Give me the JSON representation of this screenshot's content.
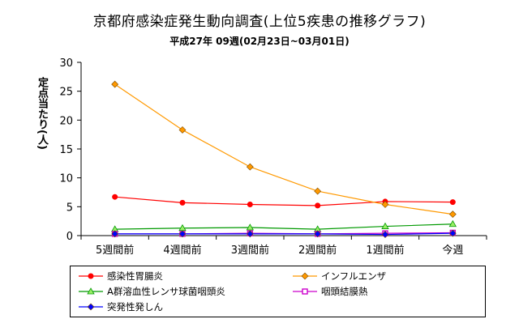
{
  "chart_data": {
    "type": "line",
    "title": "京都府感染症発生動向調査(上位5疾患の推移グラフ)",
    "subtitle": "平成27年 09週(02月23日~03月01日)",
    "ylabel": "定点当たり(人)",
    "categories": [
      "5週間前",
      "4週間前",
      "3週間前",
      "2週間前",
      "1週間前",
      "今週"
    ],
    "ylim": [
      0,
      30
    ],
    "yticks": [
      0,
      5,
      10,
      15,
      20,
      25,
      30
    ],
    "grid": false,
    "legend_position": "bottom",
    "series": [
      {
        "name": "感染性胃腸炎",
        "color": "#ff0000",
        "marker": "circle",
        "values": [
          6.7,
          5.7,
          5.4,
          5.2,
          5.9,
          5.8
        ]
      },
      {
        "name": "インフルエンザ",
        "color": "#ff9900",
        "marker": "diamond",
        "values": [
          26.2,
          18.3,
          11.9,
          7.7,
          5.4,
          3.7
        ]
      },
      {
        "name": "A群溶血性レンサ球菌咽頭炎",
        "color": "#009900",
        "marker": "triangle",
        "values": [
          1.1,
          1.3,
          1.4,
          1.1,
          1.6,
          2.0
        ]
      },
      {
        "name": "咽頭結膜熱",
        "color": "#cc00cc",
        "marker": "square",
        "values": [
          0.3,
          0.3,
          0.4,
          0.3,
          0.4,
          0.5
        ]
      },
      {
        "name": "突発性発しん",
        "color": "#0000ff",
        "marker": "diamond",
        "values": [
          0.3,
          0.3,
          0.3,
          0.3,
          0.2,
          0.4
        ]
      }
    ]
  }
}
